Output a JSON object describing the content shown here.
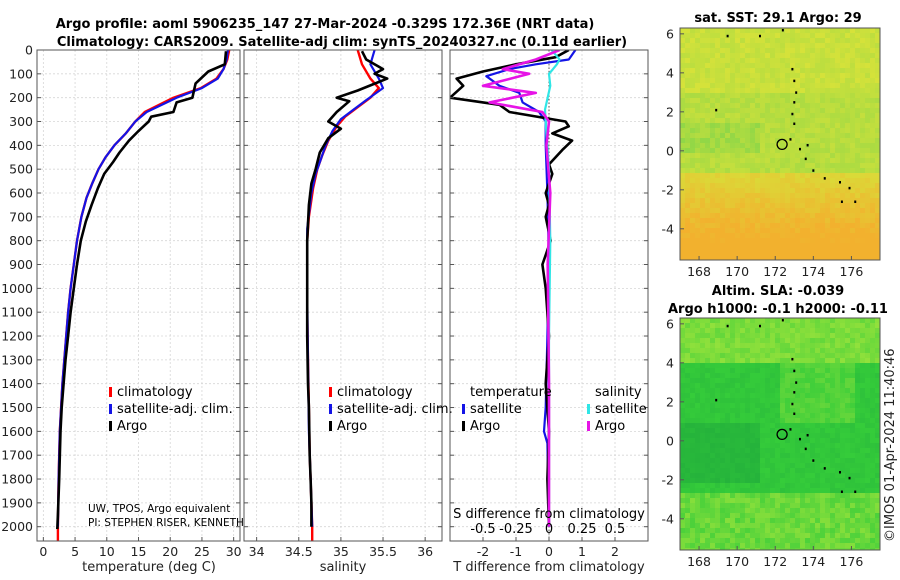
{
  "title": {
    "line1": "Argo profile: aoml 5906235_147 27-Mar-2024 -0.329S 172.36E (NRT data)",
    "line2": "Climatology: CARS2009. Satellite-adj clim: synTS_20240327.nc (0.11d earlier)"
  },
  "colors": {
    "climatology": "#ff0000",
    "satellite": "#1414e6",
    "argo": "#000000",
    "t_diff": "#1414e6",
    "s_diff_satellite": "#30e6e6",
    "s_diff_argo": "#e614e6"
  },
  "chart_data": [
    {
      "type": "line",
      "name": "temperature-profile",
      "xlabel": "temperature (deg C)",
      "xlim": [
        -1,
        31
      ],
      "xticks": [
        "0",
        "5",
        "10",
        "15",
        "20",
        "25",
        "30"
      ],
      "ylim": [
        2060,
        0
      ],
      "yticks": [
        "0",
        "100",
        "200",
        "300",
        "400",
        "500",
        "600",
        "700",
        "800",
        "900",
        "1000",
        "1100",
        "1200",
        "1300",
        "1400",
        "1500",
        "1600",
        "1700",
        "1800",
        "1900",
        "2000"
      ],
      "legend": [
        "climatology",
        "satellite-adj. clim.",
        "Argo"
      ],
      "note_lines": [
        "UW, TPOS, Argo equivalent",
        "PI: STEPHEN RISER, KENNETH"
      ],
      "series": [
        {
          "name": "climatology",
          "x": [
            29.3,
            29.0,
            28.4,
            27.3,
            24.8,
            20.5,
            16.0,
            14.5,
            13.0,
            11.2,
            9.8,
            8.7,
            7.7,
            6.8,
            6.0,
            5.3,
            4.8,
            4.3,
            3.9,
            3.6,
            3.3,
            3.0,
            2.8,
            2.6,
            2.4,
            2.3,
            2.3
          ],
          "y": [
            0,
            40,
            80,
            120,
            160,
            200,
            260,
            300,
            350,
            400,
            450,
            500,
            560,
            620,
            700,
            800,
            900,
            1000,
            1100,
            1200,
            1300,
            1400,
            1500,
            1600,
            1800,
            2000,
            2060
          ]
        },
        {
          "name": "satellite-adj. clim.",
          "x": [
            29.1,
            28.9,
            28.4,
            27.5,
            25.0,
            21.0,
            16.3,
            14.5,
            13.0,
            11.2,
            9.8,
            8.7,
            7.7,
            6.8,
            6.0,
            5.3,
            4.8,
            4.3,
            3.9,
            3.6,
            3.3,
            3.0,
            2.8,
            2.6,
            2.4,
            2.3
          ],
          "y": [
            0,
            40,
            80,
            120,
            160,
            200,
            260,
            300,
            350,
            400,
            450,
            500,
            560,
            620,
            700,
            800,
            900,
            1000,
            1100,
            1200,
            1300,
            1400,
            1500,
            1600,
            1800,
            2000
          ]
        },
        {
          "name": "Argo",
          "x": [
            28.8,
            28.6,
            26.0,
            24.0,
            23.5,
            21.0,
            20.5,
            17.0,
            16.6,
            15.0,
            13.5,
            12.0,
            11.0,
            9.6,
            8.6,
            7.6,
            6.7,
            5.9,
            5.3,
            4.8,
            4.3,
            3.9,
            3.5,
            3.2,
            2.9,
            2.7,
            2.5,
            2.3,
            2.2
          ],
          "y": [
            5,
            60,
            90,
            140,
            200,
            220,
            260,
            280,
            300,
            340,
            380,
            430,
            470,
            520,
            580,
            650,
            720,
            800,
            900,
            1000,
            1100,
            1200,
            1300,
            1400,
            1500,
            1600,
            1800,
            1950,
            2010
          ]
        }
      ]
    },
    {
      "type": "line",
      "name": "salinity-profile",
      "xlabel": "salinity",
      "xlim": [
        33.85,
        36.2
      ],
      "xticks": [
        "34",
        "34.5",
        "35",
        "35.5",
        "36"
      ],
      "ylim": [
        2060,
        0
      ],
      "legend": [
        "climatology",
        "satellite-adj. clim.",
        "Argo"
      ],
      "series": [
        {
          "name": "climatology",
          "x": [
            35.2,
            35.25,
            35.35,
            35.45,
            35.35,
            35.2,
            35.05,
            34.95,
            34.85,
            34.78,
            34.72,
            34.67,
            34.62,
            34.6,
            34.6,
            34.6,
            34.61,
            34.62,
            34.63,
            34.64,
            34.65,
            34.66,
            34.66
          ],
          "y": [
            0,
            60,
            120,
            160,
            200,
            240,
            280,
            320,
            380,
            440,
            500,
            580,
            700,
            800,
            900,
            1100,
            1300,
            1500,
            1700,
            1800,
            1900,
            2000,
            2060
          ]
        },
        {
          "name": "satellite-adj. clim.",
          "x": [
            35.4,
            35.35,
            35.45,
            35.5,
            35.3,
            35.15,
            35.0,
            34.9,
            34.82,
            34.76,
            34.7,
            34.65,
            34.6,
            34.6,
            34.61,
            34.62,
            34.64,
            34.66
          ],
          "y": [
            0,
            60,
            120,
            160,
            210,
            250,
            290,
            340,
            400,
            460,
            520,
            600,
            750,
            1000,
            1300,
            1600,
            1800,
            2000
          ]
        },
        {
          "name": "Argo",
          "x": [
            35.25,
            35.3,
            35.5,
            35.4,
            35.55,
            35.2,
            34.95,
            35.1,
            34.95,
            34.85,
            35.0,
            34.85,
            34.75,
            34.7,
            34.65,
            34.62,
            34.6,
            34.6,
            34.6,
            34.61,
            34.62,
            34.63,
            34.64,
            34.65,
            34.65
          ],
          "y": [
            5,
            40,
            80,
            100,
            120,
            170,
            200,
            215,
            260,
            300,
            330,
            370,
            430,
            500,
            560,
            650,
            800,
            1000,
            1200,
            1400,
            1500,
            1700,
            1800,
            1900,
            2000
          ]
        }
      ]
    },
    {
      "type": "line",
      "name": "difference-profile",
      "xlabel": "T difference from climatology",
      "xlabel_top": "S difference from climatology",
      "xlim": [
        -3,
        3
      ],
      "xticks": [
        "-2",
        "-1",
        "0",
        "1",
        "2"
      ],
      "xticks_top": [
        {
          "value": -0.5,
          "label": "-0.5"
        },
        {
          "value": -0.25,
          "label": "-0.25"
        },
        {
          "value": 0,
          "label": "0"
        },
        {
          "value": 0.25,
          "label": "0.25"
        },
        {
          "value": 0.5,
          "label": "0.5"
        }
      ],
      "s_scale": 4,
      "ylim": [
        2060,
        0
      ],
      "legend_headers": [
        "temperature",
        "salinity"
      ],
      "legend": [
        "satellite",
        "Argo",
        "satellite",
        "Argo"
      ],
      "series": [
        {
          "name": "T satellite",
          "x": [
            0.8,
            0.6,
            -0.4,
            -1.2,
            -1.9,
            -1.5,
            -0.9,
            -0.8,
            -0.3,
            -0.1,
            -0.1,
            -0.05,
            0.0,
            -0.05,
            -0.1,
            -0.15,
            -0.05,
            0.0
          ],
          "y": [
            0,
            40,
            60,
            80,
            110,
            150,
            180,
            220,
            260,
            300,
            400,
            600,
            900,
            1200,
            1500,
            1600,
            1650,
            2000
          ]
        },
        {
          "name": "T Argo",
          "x": [
            0.6,
            0.2,
            -1.0,
            -2.0,
            -2.8,
            -2.6,
            -3.0,
            -1.5,
            -1.2,
            0.5,
            0.6,
            0.1,
            0.7,
            0.4,
            0.2,
            0.0,
            0.1,
            -0.1,
            0.0,
            -0.1,
            0.05,
            -0.1,
            -0.2,
            -0.1,
            0.0,
            -0.1,
            0.0,
            -0.05,
            0.0
          ],
          "y": [
            0,
            30,
            60,
            90,
            120,
            150,
            200,
            230,
            260,
            300,
            320,
            350,
            380,
            420,
            450,
            480,
            520,
            600,
            650,
            700,
            800,
            860,
            900,
            1000,
            1200,
            1400,
            1600,
            1800,
            2000
          ]
        },
        {
          "name": "S satellite",
          "x": [
            0.02,
            0.08,
            0.06,
            0.03,
            0.0,
            0.01,
            -0.03,
            -0.02,
            0.0,
            0.01,
            0.0,
            0.0
          ],
          "y": [
            0,
            40,
            60,
            80,
            100,
            150,
            250,
            350,
            500,
            800,
            1200,
            2000
          ]
        },
        {
          "name": "S Argo",
          "x": [
            0.08,
            -0.1,
            -0.35,
            -0.15,
            -0.5,
            -0.1,
            -0.45,
            -0.05,
            0.0,
            -0.02,
            0.01,
            -0.01,
            0.0,
            0.0
          ],
          "y": [
            0,
            40,
            80,
            100,
            150,
            180,
            220,
            260,
            300,
            400,
            600,
            900,
            1400,
            2000
          ]
        }
      ]
    },
    {
      "type": "heatmap",
      "name": "sst-map",
      "title": "sat. SST: 29.1 Argo: 29",
      "xlim": [
        167,
        177.5
      ],
      "ylim": [
        -5.6,
        6.3
      ],
      "xticks": [
        "168",
        "170",
        "172",
        "174",
        "176"
      ],
      "yticks": [
        "-4",
        "-2",
        "0",
        "2",
        "4",
        "6"
      ],
      "profile_location": [
        172.36,
        0.33
      ]
    },
    {
      "type": "heatmap",
      "name": "sla-map",
      "title_line1": "Altim. SLA: -0.039",
      "title_line2": "Argo h1000: -0.1 h2000: -0.11",
      "xlim": [
        167,
        177.5
      ],
      "ylim": [
        -5.6,
        6.3
      ],
      "xticks": [
        "168",
        "170",
        "172",
        "174",
        "176"
      ],
      "yticks": [
        "-4",
        "-2",
        "0",
        "2",
        "4",
        "6"
      ],
      "profile_location": [
        172.36,
        0.33
      ]
    }
  ],
  "credit": "©IMOS 01-Apr-2024 11:40:46"
}
